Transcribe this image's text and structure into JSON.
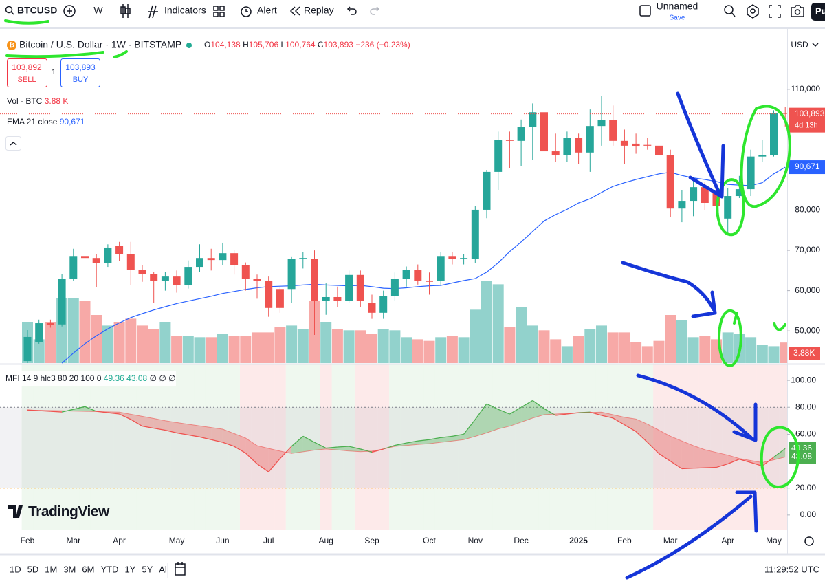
{
  "toolbar": {
    "symbol": "BTCUSD",
    "interval": "W",
    "indicators": "Indicators",
    "alert": "Alert",
    "replay": "Replay",
    "layout_name": "Unnamed",
    "save": "Save",
    "profile": "Pu"
  },
  "legend": {
    "title": "Bitcoin / U.S. Dollar · 1W · BITSTAMP",
    "o_label": "O",
    "o": "104,138",
    "h_label": "H",
    "h": "105,706",
    "l_label": "L",
    "l": "100,764",
    "c_label": "C",
    "c": "103,893",
    "change": "−236 (−0.23%)"
  },
  "trade": {
    "sell_price": "103,892",
    "sell": "SELL",
    "qty": "1",
    "buy_price": "103,893",
    "buy": "BUY"
  },
  "currency": "USD",
  "logo": "TradingView",
  "timeframes": [
    "1D",
    "5D",
    "1M",
    "3M",
    "6M",
    "YTD",
    "1Y",
    "5Y",
    "All"
  ],
  "clock": "11:29:52 UTC",
  "chart_data": [
    {
      "type": "candlestick",
      "categories": [
        "Feb",
        null,
        null,
        null,
        "Mar",
        null,
        null,
        null,
        "Apr",
        null,
        null,
        null,
        null,
        "May",
        null,
        null,
        null,
        "Jun",
        null,
        null,
        null,
        "Jul",
        null,
        null,
        null,
        null,
        "Aug",
        null,
        null,
        null,
        "Sep",
        null,
        null,
        null,
        null,
        "Oct",
        null,
        null,
        null,
        "Nov",
        null,
        null,
        null,
        "Dec",
        null,
        null,
        null,
        null,
        "2025",
        null,
        null,
        null,
        "Feb",
        null,
        null,
        null,
        "Mar",
        null,
        null,
        null,
        null,
        "Apr",
        null,
        null,
        null,
        "May",
        null
      ],
      "open": [
        42500,
        47300,
        51900,
        51600,
        63000,
        68600,
        68100,
        66800,
        71200,
        69000,
        65100,
        64200,
        62500,
        63500,
        61300,
        65900,
        68100,
        67600,
        69300,
        66300,
        63000,
        62500,
        60400,
        60400,
        67800,
        67800,
        57500,
        58400,
        57500,
        63900,
        57000,
        54500,
        58700,
        63000,
        65200,
        62500,
        62500,
        68600,
        67800,
        67800,
        80100,
        89500,
        97500,
        97200,
        100600,
        104300,
        94600,
        93700,
        98000,
        94300,
        100900,
        102300,
        97200,
        96500,
        96200,
        96000,
        93700,
        80400,
        82300,
        85700,
        84400,
        77900,
        83500,
        85200,
        93300,
        93700,
        104138
      ],
      "high": [
        50200,
        52800,
        52800,
        64200,
        70400,
        73300,
        69000,
        71500,
        72100,
        72100,
        66400,
        64700,
        64700,
        65000,
        67500,
        71500,
        70400,
        71900,
        70000,
        67000,
        64000,
        63500,
        61000,
        68500,
        69500,
        70000,
        61800,
        61000,
        65000,
        65000,
        59000,
        60000,
        64500,
        66000,
        66500,
        64500,
        69500,
        69500,
        69000,
        81000,
        90000,
        99500,
        99500,
        102500,
        106500,
        108300,
        99000,
        99500,
        99000,
        105000,
        108300,
        106000,
        100000,
        99000,
        98000,
        97500,
        95000,
        85000,
        87500,
        87000,
        86000,
        85500,
        88500,
        95000,
        97500,
        104800,
        105706
      ],
      "low": [
        42000,
        46800,
        50800,
        51100,
        62500,
        65600,
        60800,
        65900,
        67300,
        61300,
        62200,
        57000,
        60000,
        59500,
        60500,
        64700,
        65000,
        66400,
        64000,
        60000,
        58000,
        53500,
        54500,
        57000,
        65500,
        49000,
        54000,
        56000,
        57000,
        56000,
        53000,
        53000,
        57500,
        61000,
        61500,
        59000,
        61500,
        66500,
        66500,
        66800,
        78000,
        85000,
        90500,
        91000,
        92500,
        92500,
        92000,
        92000,
        91500,
        89500,
        96000,
        96000,
        91500,
        94000,
        95000,
        91500,
        78300,
        77000,
        78500,
        80000,
        78500,
        74600,
        83000,
        83500,
        92000,
        93300,
        100764
      ],
      "close": [
        48500,
        51900,
        51500,
        63000,
        68600,
        68100,
        66800,
        70700,
        69000,
        65100,
        64200,
        62500,
        63500,
        61300,
        65900,
        68100,
        67600,
        69300,
        66300,
        63000,
        62500,
        55700,
        55700,
        67800,
        68100,
        57500,
        58400,
        57500,
        63900,
        57500,
        54500,
        58700,
        63000,
        65200,
        62500,
        62200,
        68600,
        67800,
        68100,
        80100,
        89500,
        97500,
        97200,
        100600,
        104300,
        94600,
        93700,
        98000,
        94300,
        100900,
        102300,
        97200,
        96000,
        95800,
        96000,
        93700,
        80400,
        82300,
        85700,
        81800,
        81000,
        83500,
        85200,
        93300,
        93700,
        104000,
        103893
      ],
      "up_color": "#26a69a",
      "down_color": "#ef5350",
      "ylim": [
        42000,
        124500
      ],
      "yticks": [
        {
          "value": 50000,
          "label": "50,000"
        },
        {
          "value": 60000,
          "label": "60,000"
        },
        {
          "value": 70000,
          "label": "70,000"
        },
        {
          "value": 80000,
          "label": "80,000"
        },
        {
          "value": 110000,
          "label": "110,000"
        }
      ],
      "last_price_label": "103,893",
      "countdown": "4d 13h",
      "volume": {
        "name": "Vol · BTC",
        "values": [
          7.8,
          4.5,
          7.8,
          12.3,
          12.3,
          11.7,
          9.1,
          7.1,
          7.8,
          8.4,
          7.1,
          6.5,
          7.8,
          5.2,
          5.2,
          4.9,
          4.9,
          5.5,
          5.2,
          5.2,
          5.8,
          5.8,
          6.8,
          7.1,
          6.5,
          11.7,
          7.8,
          6.5,
          6.2,
          6.2,
          5.5,
          6.5,
          6.2,
          4.9,
          4.5,
          4.2,
          4.9,
          5.2,
          4.9,
          10.1,
          15.6,
          14.9,
          6.8,
          10.6,
          7.1,
          6.2,
          4.5,
          3.2,
          5.2,
          6.5,
          7.1,
          5.8,
          5.8,
          3.9,
          3.2,
          4.2,
          9.1,
          8.1,
          4.9,
          5.2,
          4.5,
          5.8,
          5.5,
          4.9,
          3.4,
          3.2,
          3.88
        ],
        "legend_label": "3.88 K",
        "axis_label": "3.88K"
      },
      "ema": {
        "name": "EMA 21 close",
        "color": "#2962ff",
        "values": [
          null,
          null,
          null,
          42000,
          44500,
          46800,
          48800,
          50500,
          52000,
          53300,
          54300,
          55200,
          56000,
          56800,
          57400,
          58000,
          58600,
          59300,
          59800,
          60300,
          60700,
          61000,
          61100,
          61200,
          61400,
          61600,
          61400,
          61300,
          61200,
          61300,
          61000,
          60600,
          60500,
          60700,
          61000,
          61200,
          61300,
          61900,
          62500,
          63000,
          64600,
          66900,
          69700,
          72100,
          74700,
          77300,
          78900,
          80200,
          81800,
          82800,
          84400,
          85900,
          86800,
          87600,
          88300,
          89000,
          89400,
          88600,
          88000,
          87600,
          87100,
          86400,
          86200,
          86100,
          86800,
          89000,
          90671
        ],
        "last_label": "90,671"
      }
    },
    {
      "type": "line",
      "title": "MFI 14 9 hlc3 80 20 100 0",
      "series": [
        {
          "color": "#4caf50",
          "values": [
            78,
            77.5,
            77,
            76.5,
            78.5,
            80.5,
            77,
            76,
            75,
            71,
            66,
            64.5,
            63,
            61,
            59.5,
            58,
            56,
            54,
            51,
            46,
            38,
            32,
            42,
            51,
            58.5,
            54,
            49.7,
            50.5,
            51,
            49,
            46.7,
            49,
            51.8,
            53.5,
            55,
            56,
            57.5,
            58.5,
            60,
            71,
            82.6,
            78.5,
            75,
            80,
            85,
            79,
            74,
            75,
            76,
            76.4,
            74,
            72,
            67,
            62,
            54,
            45.6,
            40,
            34.4,
            34.8,
            35.1,
            35.4,
            38,
            41.5,
            39,
            36.4,
            43,
            49.36
          ]
        },
        {
          "color": "#ef5350",
          "values": [
            78,
            77.8,
            77.6,
            77.4,
            77.2,
            77,
            76.8,
            76.6,
            76.4,
            74.8,
            73.3,
            71.7,
            70,
            68.7,
            67.4,
            66.2,
            65,
            63.8,
            60.5,
            57.2,
            51.5,
            49.5,
            47.5,
            45.8,
            47,
            48.2,
            49,
            48.3,
            47.6,
            47.1,
            47.5,
            49,
            51,
            51.7,
            52.4,
            53,
            54,
            55,
            56,
            58.4,
            61,
            64,
            66,
            69,
            72,
            74.5,
            75,
            75.5,
            76,
            76.2,
            76.4,
            74.5,
            72.6,
            71.3,
            67.5,
            63,
            58.5,
            55,
            51.5,
            48.5,
            46.5,
            44.5,
            42,
            40.5,
            39,
            41,
            43.08
          ]
        }
      ],
      "ylim": [
        -10.8,
        111.8
      ],
      "yticks": [
        {
          "value": 0,
          "label": "0.00"
        },
        {
          "value": 20,
          "label": "20.00"
        },
        {
          "value": 60,
          "label": "60.00"
        },
        {
          "value": 80,
          "label": "80.00"
        },
        {
          "value": 100,
          "label": "100.00"
        }
      ],
      "levels": [
        80,
        20
      ],
      "empty_labels": [
        "∅",
        "∅",
        "∅"
      ]
    }
  ]
}
